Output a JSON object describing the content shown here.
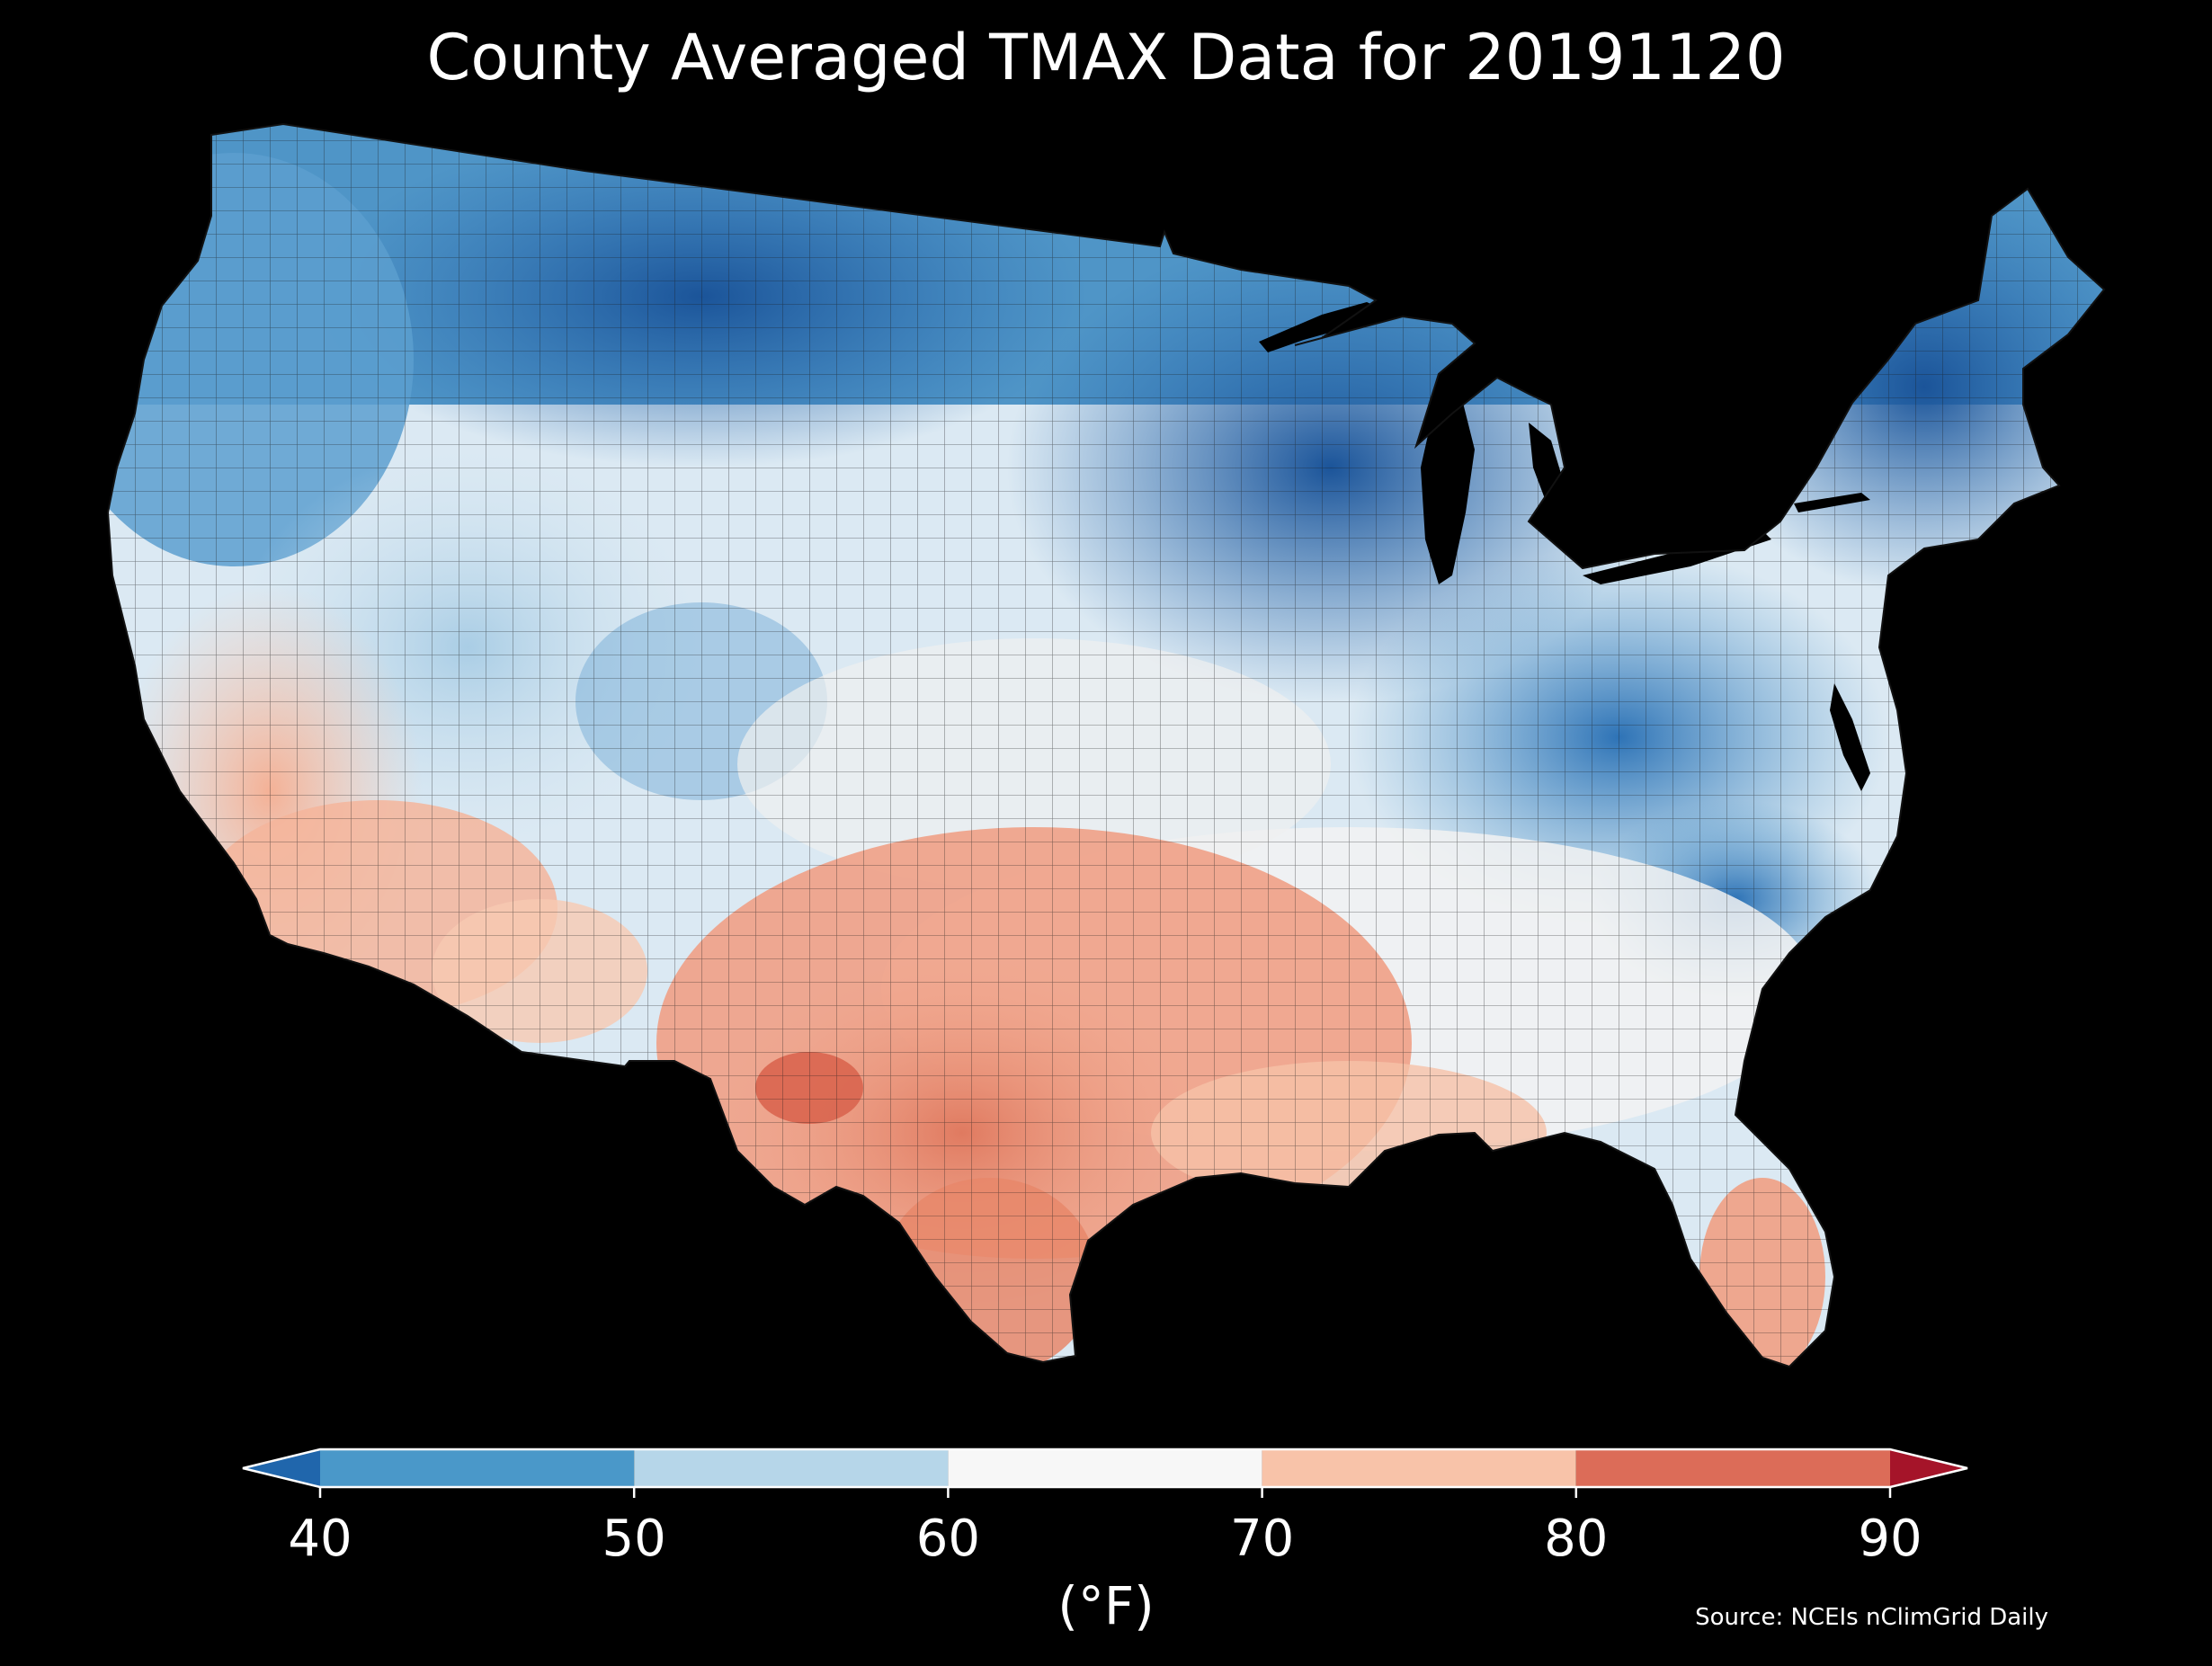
{
  "title": "County Averaged TMAX Data for 20191120",
  "map": {
    "region": "Contiguous United States",
    "variable": "TMAX",
    "aggregation": "County averaged",
    "date": "20191120",
    "background_color": "#000000",
    "border_color": "#1a1a1a",
    "regional_pattern": [
      {
        "region": "Northern Plains / Upper Midwest / New England",
        "color": "#1f5fa8"
      },
      {
        "region": "Pacific Northwest / Northern Rockies",
        "color": "#4d95c8"
      },
      {
        "region": "Great Basin / Central Plains",
        "color": "#b7d6ea"
      },
      {
        "region": "Ohio Valley / Mid-Atlantic",
        "color": "#3f7fbf"
      },
      {
        "region": "Southeast / Central states",
        "color": "#f2f2f2"
      },
      {
        "region": "California / Desert Southwest",
        "color": "#f7c4aa"
      },
      {
        "region": "Texas / Southern Plains",
        "color": "#e8876a"
      },
      {
        "region": "Florida",
        "color": "#f0a084"
      }
    ]
  },
  "colorbar": {
    "unit": "(°F)",
    "ticks": [
      "40",
      "50",
      "60",
      "70",
      "80",
      "90"
    ],
    "tick_values": [
      40,
      50,
      60,
      70,
      80,
      90
    ],
    "bins": [
      {
        "from": 40,
        "to": 50,
        "color": "#4a98c9"
      },
      {
        "from": 50,
        "to": 60,
        "color": "#b6d6e9"
      },
      {
        "from": 60,
        "to": 70,
        "color": "#f7f7f7"
      },
      {
        "from": 70,
        "to": 80,
        "color": "#f8c3a9"
      },
      {
        "from": 80,
        "to": 90,
        "color": "#dc6c58"
      }
    ],
    "under_color": "#2066ac",
    "over_color": "#a51429",
    "outline_color": "#ffffff"
  },
  "source": "Source: NCEIs nClimGrid Daily"
}
